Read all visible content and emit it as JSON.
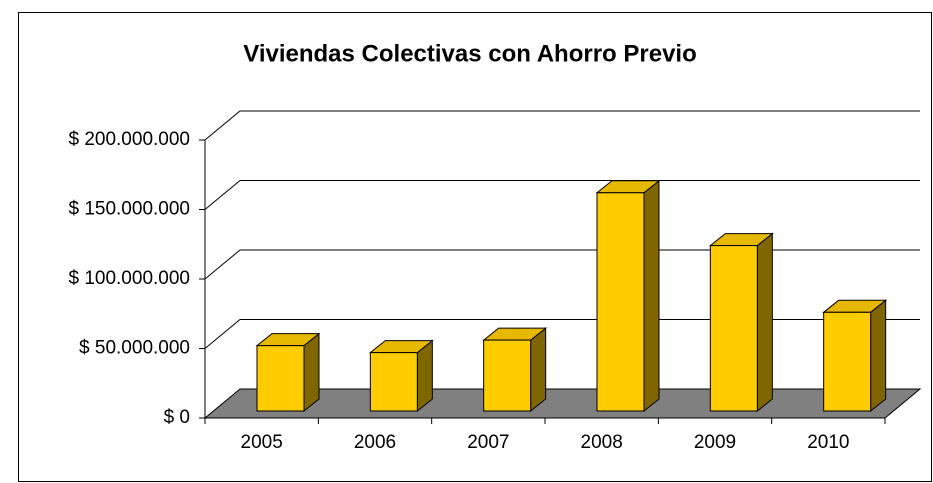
{
  "chart_data": {
    "type": "bar3d",
    "title": "Viviendas Colectivas con Ahorro Previo",
    "categories": [
      "2005",
      "2006",
      "2007",
      "2008",
      "2009",
      "2010"
    ],
    "values": [
      47000000,
      42000000,
      51000000,
      157000000,
      119000000,
      71000000
    ],
    "color": "#ffcc00",
    "ylim": [
      0,
      200000000
    ],
    "yticks": [
      {
        "value": 0,
        "label": "$ 0"
      },
      {
        "value": 50000000,
        "label": "$ 50.000.000"
      },
      {
        "value": 100000000,
        "label": "$ 100.000.000"
      },
      {
        "value": 150000000,
        "label": "$ 150.000.000"
      },
      {
        "value": 200000000,
        "label": "$ 200.000.000"
      }
    ],
    "grid": true
  }
}
